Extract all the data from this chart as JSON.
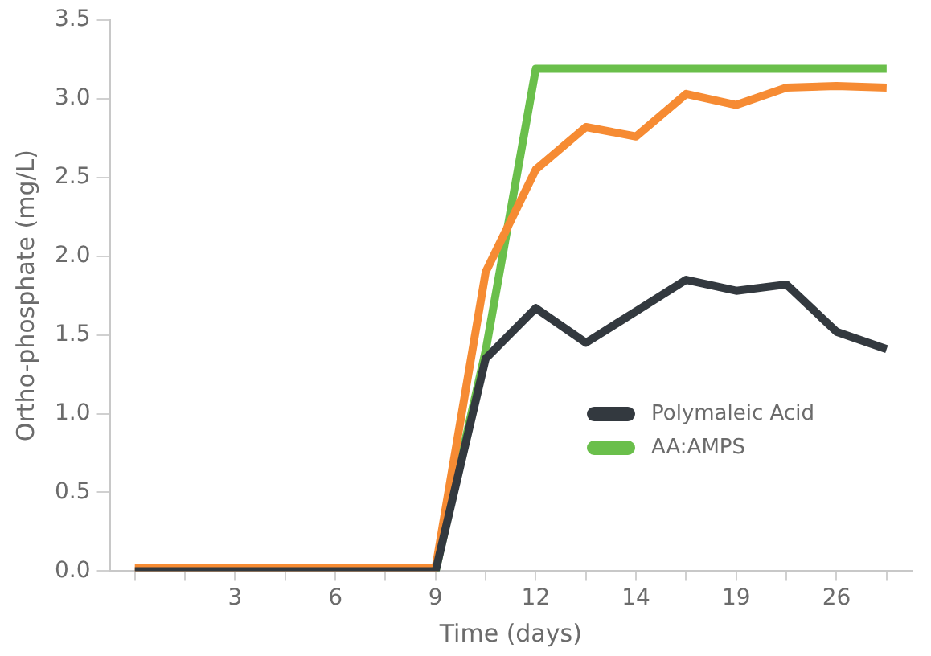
{
  "chart_data": {
    "type": "line",
    "xlabel": "Time (days)",
    "ylabel": "Ortho-phosphate (mg/L)",
    "categories": [
      null,
      null,
      "3",
      null,
      "6",
      null,
      "9",
      null,
      "12",
      null,
      "14",
      null,
      "19",
      null,
      "26",
      null
    ],
    "series": [
      {
        "name": "Polymaleic Acid",
        "color": "#33393f",
        "values": [
          0,
          0,
          0,
          0,
          0,
          0,
          0,
          1.35,
          1.67,
          1.45,
          1.65,
          1.85,
          1.78,
          1.82,
          1.52,
          1.41
        ]
      },
      {
        "color": "#f68b33",
        "values": [
          0.02,
          0.02,
          0.02,
          0.02,
          0.02,
          0.02,
          0.02,
          1.9,
          2.55,
          2.82,
          2.76,
          3.03,
          2.96,
          3.07,
          3.08,
          3.07
        ]
      },
      {
        "name": "AA:AMPS",
        "color": "#6abf4b",
        "values": [
          null,
          null,
          null,
          null,
          null,
          null,
          0,
          1.4,
          3.19,
          3.19,
          3.19,
          3.19,
          3.19,
          3.19,
          3.19,
          3.19
        ]
      }
    ],
    "ylim": [
      0,
      3.5
    ],
    "yticks": [
      {
        "value": 0,
        "label": "0.0"
      },
      {
        "value": 0.5,
        "label": "0.5"
      },
      {
        "value": 1,
        "label": "1.0"
      },
      {
        "value": 1.5,
        "label": "1.5"
      },
      {
        "value": 2,
        "label": "2.0"
      },
      {
        "value": 2.5,
        "label": "2.5"
      },
      {
        "value": 3,
        "label": "3.0"
      },
      {
        "value": 3.5,
        "label": "3.5"
      }
    ],
    "grid": false,
    "legend": "bottom right",
    "marker": "none",
    "line_style": "solid"
  }
}
